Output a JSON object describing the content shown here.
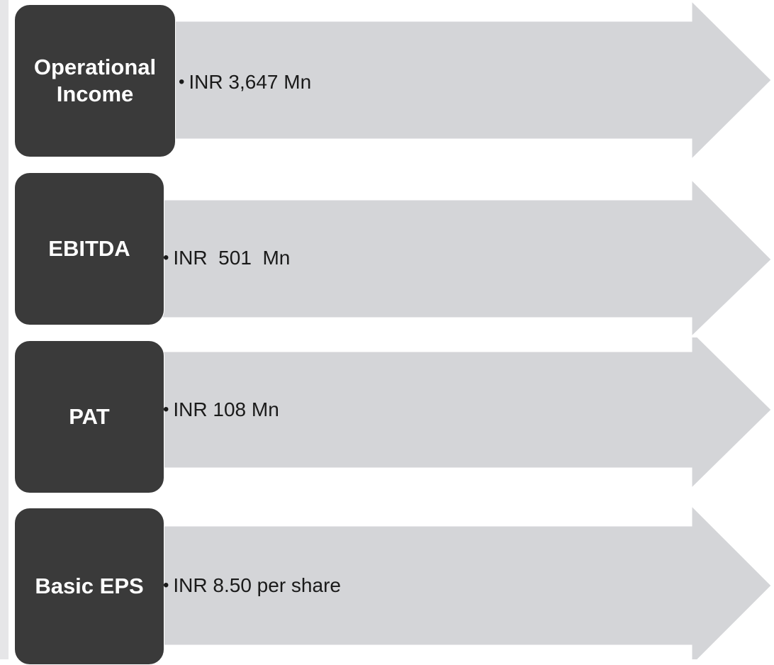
{
  "rows": [
    {
      "label": "Operational\nIncome",
      "value": "INR 3,647 Mn"
    },
    {
      "label": "EBITDA",
      "value": "INR  501  Mn"
    },
    {
      "label": "PAT",
      "value": "INR 108 Mn"
    },
    {
      "label": "Basic EPS",
      "value": "INR 8.50 per share"
    }
  ],
  "bullet": "•",
  "colors": {
    "label_bg": "#3a3a3a",
    "arrow": "#d4d5d8",
    "text": "#1a1a1a"
  }
}
